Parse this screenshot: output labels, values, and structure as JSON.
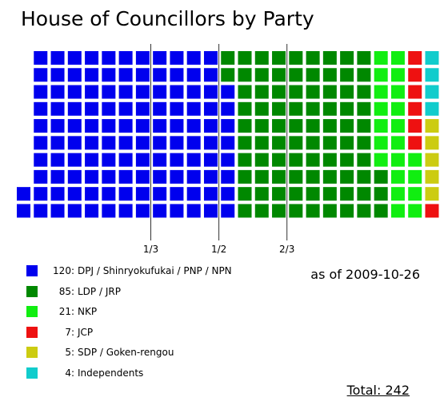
{
  "chart_data": {
    "type": "parliament-grid",
    "title": "House of Councillors by Party",
    "as_of": "as of 2009-10-26",
    "total_label": "Total: 242",
    "total": 242,
    "rows": 10,
    "fractions": [
      {
        "label": "1/3",
        "after_column": 8
      },
      {
        "label": "1/2",
        "after_column": 12
      },
      {
        "label": "2/3",
        "after_column": 16
      }
    ],
    "parties": [
      {
        "count": 120,
        "label": "120:",
        "name": "DPJ / Shinryokufukai / PNP / NPN",
        "color": "#0000ee"
      },
      {
        "count": 85,
        "label": "85:",
        "name": "LDP / JRP",
        "color": "#008800"
      },
      {
        "count": 21,
        "label": "21:",
        "name": "NKP",
        "color": "#11ee11"
      },
      {
        "count": 7,
        "label": "7:",
        "name": "JCP",
        "color": "#ee1111"
      },
      {
        "count": 5,
        "label": "5:",
        "name": "SDP / Goken-rengou",
        "color": "#cccc11"
      },
      {
        "count": 4,
        "label": "4:",
        "name": "Independents",
        "color": "#11cccc"
      }
    ]
  }
}
